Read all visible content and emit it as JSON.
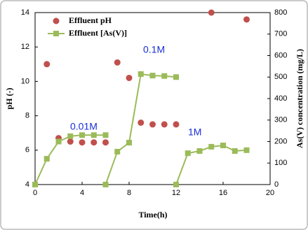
{
  "chart_data": {
    "type": "combo",
    "x_label": "Time(h)",
    "y_label": "pH (-)",
    "y2_label": "As(V) concentration (mg/L)",
    "xlim": [
      0,
      20
    ],
    "xticks": [
      0,
      4,
      8,
      12,
      16,
      20
    ],
    "ylim": [
      4,
      14
    ],
    "yticks": [
      4,
      6,
      8,
      10,
      12,
      14
    ],
    "y2lim": [
      0,
      800
    ],
    "y2ticks": [
      0,
      100,
      200,
      300,
      400,
      500,
      600,
      700,
      800
    ],
    "legend": "top-left",
    "annotations": [
      "0.01M",
      "0.1M",
      "1M"
    ],
    "series": [
      {
        "name": "Effluent pH",
        "type": "scatter",
        "color": "#c0504d",
        "x": [
          1,
          2,
          3,
          4,
          5,
          6,
          7,
          8,
          9,
          10,
          11,
          12,
          15,
          18
        ],
        "values": [
          11.0,
          6.7,
          6.5,
          6.45,
          6.45,
          6.45,
          11.1,
          10.2,
          7.6,
          7.5,
          7.5,
          7.5,
          14.0,
          13.6
        ]
      },
      {
        "name": "Effluent [As(V)]",
        "type": "line",
        "axis": "y2",
        "color": "#9bbb59",
        "x": [
          0,
          1,
          2,
          3,
          4,
          5,
          6,
          null,
          6,
          7,
          8,
          9,
          10,
          11,
          12,
          null,
          12,
          13,
          14,
          15,
          16,
          17,
          18
        ],
        "values": [
          0,
          120,
          200,
          225,
          230,
          230,
          230,
          null,
          0,
          153,
          195,
          514,
          507,
          505,
          500,
          null,
          0,
          146,
          156,
          176,
          182,
          156,
          160
        ]
      }
    ]
  }
}
